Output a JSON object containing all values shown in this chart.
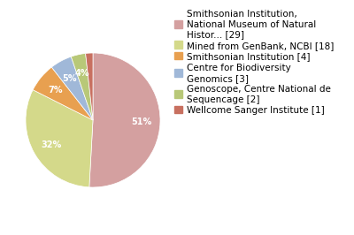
{
  "slices": [
    29,
    18,
    4,
    3,
    2,
    1
  ],
  "colors": [
    "#d4a0a0",
    "#d4d98a",
    "#e8a050",
    "#a0b8d8",
    "#b8c878",
    "#c87060"
  ],
  "legend_labels": [
    "Smithsonian Institution,\nNational Museum of Natural\nHistor... [29]",
    "Mined from GenBank, NCBI [18]",
    "Smithsonian Institution [4]",
    "Centre for Biodiversity\nGenomics [3]",
    "Genoscope, Centre National de\nSequencage [2]",
    "Wellcome Sanger Institute [1]"
  ],
  "startangle": 90,
  "text_color": "white",
  "fontsize": 7,
  "legend_fontsize": 7.5,
  "bg_color": "#f5f5f5"
}
